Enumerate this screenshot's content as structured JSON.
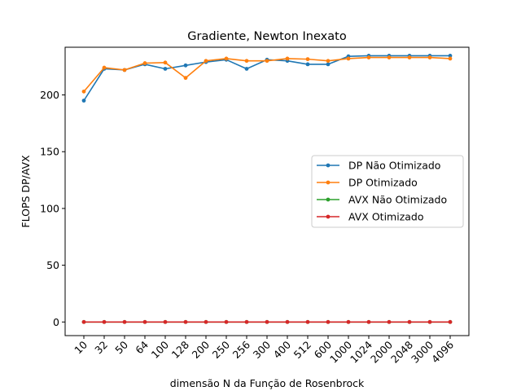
{
  "chart_data": {
    "type": "line",
    "title": "Gradiente, Newton Inexato",
    "xlabel": "dimensão N da Função de Rosenbrock",
    "ylabel": "FLOPS DP/AVX",
    "categories": [
      "10",
      "32",
      "50",
      "64",
      "100",
      "128",
      "200",
      "250",
      "256",
      "300",
      "400",
      "512",
      "600",
      "1000",
      "1024",
      "2000",
      "2048",
      "3000",
      "4096"
    ],
    "ylim": [
      -12,
      242
    ],
    "yticks": [
      "0",
      "50",
      "100",
      "150",
      "200"
    ],
    "grid": false,
    "legend_position": "center-right",
    "series": [
      {
        "name": "DP Não Otimizado",
        "color": "#1f77b4",
        "values": [
          195,
          223,
          222,
          227,
          223,
          226,
          229,
          231,
          223,
          231,
          230,
          227,
          227,
          234,
          234.5,
          234.5,
          234.5,
          234.5,
          234.5
        ]
      },
      {
        "name": "DP Otimizado",
        "color": "#ff7f0e",
        "values": [
          203,
          224,
          222,
          228,
          228.5,
          215,
          230,
          232,
          230,
          230,
          232,
          231.5,
          230,
          232,
          233,
          233,
          233,
          233,
          232
        ]
      },
      {
        "name": "AVX Não Otimizado",
        "color": "#2ca02c",
        "values": [
          0,
          0,
          0,
          0,
          0,
          0,
          0,
          0,
          0,
          0,
          0,
          0,
          0,
          0,
          0,
          0,
          0,
          0,
          0
        ]
      },
      {
        "name": "AVX Otimizado",
        "color": "#d62728",
        "values": [
          0,
          0,
          0,
          0,
          0,
          0,
          0,
          0,
          0,
          0,
          0,
          0,
          0,
          0,
          0,
          0,
          0,
          0,
          0
        ]
      }
    ]
  }
}
